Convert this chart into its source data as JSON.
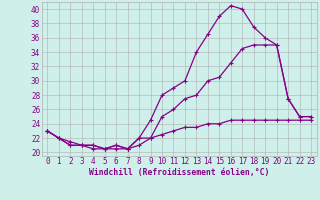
{
  "xlabel": "Windchill (Refroidissement éolien,°C)",
  "background_color": "#cff0ea",
  "grid_color": "#b0b0b0",
  "line_color": "#880088",
  "xlim": [
    -0.5,
    23.5
  ],
  "ylim": [
    19.5,
    41.0
  ],
  "yticks": [
    20,
    22,
    24,
    26,
    28,
    30,
    32,
    34,
    36,
    38,
    40
  ],
  "xticks": [
    0,
    1,
    2,
    3,
    4,
    5,
    6,
    7,
    8,
    9,
    10,
    11,
    12,
    13,
    14,
    15,
    16,
    17,
    18,
    19,
    20,
    21,
    22,
    23
  ],
  "series": [
    [
      23.0,
      22.0,
      21.0,
      21.0,
      21.0,
      20.5,
      21.0,
      20.5,
      22.0,
      24.5,
      28.0,
      29.0,
      30.0,
      34.0,
      36.5,
      39.0,
      40.5,
      40.0,
      37.5,
      36.0,
      35.0,
      27.5,
      25.0,
      25.0
    ],
    [
      23.0,
      22.0,
      21.0,
      21.0,
      21.0,
      20.5,
      21.0,
      20.5,
      22.0,
      22.0,
      25.0,
      26.0,
      27.5,
      28.0,
      30.0,
      30.5,
      32.5,
      34.5,
      35.0,
      35.0,
      35.0,
      27.5,
      25.0,
      25.0
    ],
    [
      23.0,
      22.0,
      21.5,
      21.0,
      20.5,
      20.5,
      20.5,
      20.5,
      21.0,
      22.0,
      22.5,
      23.0,
      23.5,
      23.5,
      24.0,
      24.0,
      24.5,
      24.5,
      24.5,
      24.5,
      24.5,
      24.5,
      24.5,
      24.5
    ]
  ],
  "tick_fontsize": 5.5,
  "xlabel_fontsize": 5.8,
  "marker_size": 2.5,
  "line_width": 0.9
}
